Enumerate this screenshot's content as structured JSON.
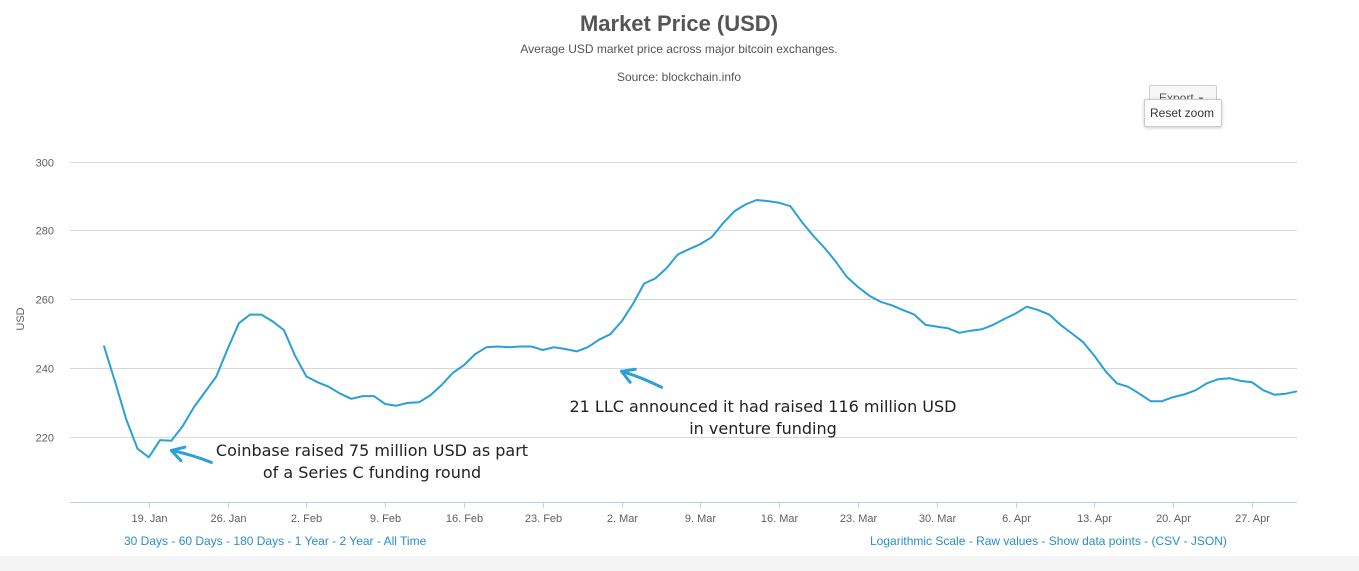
{
  "chart_data": {
    "type": "line",
    "title": "Market Price (USD)",
    "subtitle": "Average USD market price across major bitcoin exchanges.",
    "source": "Source: blockchain.info",
    "ylabel": "USD",
    "ylim": [
      201,
      308
    ],
    "yticks": [
      220,
      240,
      260,
      280,
      300
    ],
    "xlim": [
      "2015-01-12",
      "2015-05-01"
    ],
    "xticks": [
      {
        "date": "2015-01-19",
        "label": "19. Jan"
      },
      {
        "date": "2015-01-26",
        "label": "26. Jan"
      },
      {
        "date": "2015-02-02",
        "label": "2. Feb"
      },
      {
        "date": "2015-02-09",
        "label": "9. Feb"
      },
      {
        "date": "2015-02-16",
        "label": "16. Feb"
      },
      {
        "date": "2015-02-23",
        "label": "23. Feb"
      },
      {
        "date": "2015-03-02",
        "label": "2. Mar"
      },
      {
        "date": "2015-03-09",
        "label": "9. Mar"
      },
      {
        "date": "2015-03-16",
        "label": "16. Mar"
      },
      {
        "date": "2015-03-23",
        "label": "23. Mar"
      },
      {
        "date": "2015-03-30",
        "label": "30. Mar"
      },
      {
        "date": "2015-04-06",
        "label": "6. Apr"
      },
      {
        "date": "2015-04-13",
        "label": "13. Apr"
      },
      {
        "date": "2015-04-20",
        "label": "20. Apr"
      },
      {
        "date": "2015-04-27",
        "label": "27. Apr"
      }
    ],
    "grid": true,
    "series": [
      {
        "color": "#2a9fd8",
        "points": [
          [
            "2015-01-15",
            246.5
          ],
          [
            "2015-01-16",
            236
          ],
          [
            "2015-01-17",
            225
          ],
          [
            "2015-01-18",
            216.5
          ],
          [
            "2015-01-19",
            214
          ],
          [
            "2015-01-20",
            219
          ],
          [
            "2015-01-21",
            218.8
          ],
          [
            "2015-01-22",
            223
          ],
          [
            "2015-01-23",
            228.5
          ],
          [
            "2015-01-24",
            233
          ],
          [
            "2015-01-25",
            237.5
          ],
          [
            "2015-01-26",
            245.5
          ],
          [
            "2015-01-27",
            253
          ],
          [
            "2015-01-28",
            255.5
          ],
          [
            "2015-01-29",
            255.5
          ],
          [
            "2015-01-30",
            253.5
          ],
          [
            "2015-01-31",
            251
          ],
          [
            "2015-02-01",
            243.5
          ],
          [
            "2015-02-02",
            237.5
          ],
          [
            "2015-02-03",
            235.8
          ],
          [
            "2015-02-04",
            234.5
          ],
          [
            "2015-02-05",
            232.5
          ],
          [
            "2015-02-06",
            231
          ],
          [
            "2015-02-07",
            231.8
          ],
          [
            "2015-02-08",
            231.8
          ],
          [
            "2015-02-09",
            229.5
          ],
          [
            "2015-02-10",
            229
          ],
          [
            "2015-02-11",
            229.8
          ],
          [
            "2015-02-12",
            230
          ],
          [
            "2015-02-13",
            232
          ],
          [
            "2015-02-14",
            235
          ],
          [
            "2015-02-15",
            238.5
          ],
          [
            "2015-02-16",
            240.8
          ],
          [
            "2015-02-17",
            244
          ],
          [
            "2015-02-18",
            246
          ],
          [
            "2015-02-19",
            246.2
          ],
          [
            "2015-02-20",
            246
          ],
          [
            "2015-02-21",
            246.2
          ],
          [
            "2015-02-22",
            246.2
          ],
          [
            "2015-02-23",
            245.2
          ],
          [
            "2015-02-24",
            246
          ],
          [
            "2015-02-25",
            245.5
          ],
          [
            "2015-02-26",
            244.8
          ],
          [
            "2015-02-27",
            246
          ],
          [
            "2015-02-28",
            248.2
          ],
          [
            "2015-03-01",
            249.8
          ],
          [
            "2015-03-02",
            253.5
          ],
          [
            "2015-03-03",
            258.5
          ],
          [
            "2015-03-04",
            264.5
          ],
          [
            "2015-03-05",
            266
          ],
          [
            "2015-03-06",
            269
          ],
          [
            "2015-03-07",
            273
          ],
          [
            "2015-03-08",
            274.5
          ],
          [
            "2015-03-09",
            276
          ],
          [
            "2015-03-10",
            278
          ],
          [
            "2015-03-11",
            282
          ],
          [
            "2015-03-12",
            285.5
          ],
          [
            "2015-03-13",
            287.5
          ],
          [
            "2015-03-14",
            288.8
          ],
          [
            "2015-03-15",
            288.5
          ],
          [
            "2015-03-16",
            288
          ],
          [
            "2015-03-17",
            287
          ],
          [
            "2015-03-18",
            282.5
          ],
          [
            "2015-03-19",
            278.5
          ],
          [
            "2015-03-20",
            275
          ],
          [
            "2015-03-21",
            271
          ],
          [
            "2015-03-22",
            266.5
          ],
          [
            "2015-03-23",
            263.5
          ],
          [
            "2015-03-24",
            261
          ],
          [
            "2015-03-25",
            259.2
          ],
          [
            "2015-03-26",
            258.2
          ],
          [
            "2015-03-27",
            256.8
          ],
          [
            "2015-03-28",
            255.5
          ],
          [
            "2015-03-29",
            252.5
          ],
          [
            "2015-03-30",
            252
          ],
          [
            "2015-03-31",
            251.5
          ],
          [
            "2015-04-01",
            250.2
          ],
          [
            "2015-04-02",
            250.8
          ],
          [
            "2015-04-03",
            251.2
          ],
          [
            "2015-04-04",
            252.5
          ],
          [
            "2015-04-05",
            254.2
          ],
          [
            "2015-04-06",
            255.8
          ],
          [
            "2015-04-07",
            257.8
          ],
          [
            "2015-04-08",
            256.8
          ],
          [
            "2015-04-09",
            255.5
          ],
          [
            "2015-04-10",
            252.5
          ],
          [
            "2015-04-11",
            250
          ],
          [
            "2015-04-12",
            247.5
          ],
          [
            "2015-04-13",
            243.5
          ],
          [
            "2015-04-14",
            239
          ],
          [
            "2015-04-15",
            235.5
          ],
          [
            "2015-04-16",
            234.5
          ],
          [
            "2015-04-17",
            232.5
          ],
          [
            "2015-04-18",
            230.3
          ],
          [
            "2015-04-19",
            230.3
          ],
          [
            "2015-04-20",
            231.5
          ],
          [
            "2015-04-21",
            232.3
          ],
          [
            "2015-04-22",
            233.5
          ],
          [
            "2015-04-23",
            235.5
          ],
          [
            "2015-04-24",
            236.7
          ],
          [
            "2015-04-25",
            237
          ],
          [
            "2015-04-26",
            236.2
          ],
          [
            "2015-04-27",
            235.8
          ],
          [
            "2015-04-28",
            233.5
          ],
          [
            "2015-04-29",
            232.2
          ],
          [
            "2015-04-30",
            232.5
          ],
          [
            "2015-05-01",
            233.2
          ]
        ]
      }
    ],
    "annotations": [
      {
        "lines": [
          "Coinbase raised 75 million USD as part",
          "of a Series C funding round"
        ],
        "arrow_to": [
          "2015-01-21",
          216
        ]
      },
      {
        "lines": [
          "21 LLC announced it had raised 116 million USD",
          "in venture funding"
        ],
        "arrow_to": [
          "2015-03-02",
          239
        ]
      }
    ]
  },
  "toolbar": {
    "export_label": "Export",
    "reset_zoom_label": "Reset zoom"
  },
  "footer": {
    "left_links": [
      "30 Days",
      "60 Days",
      "180 Days",
      "1 Year",
      "2 Year",
      "All Time"
    ],
    "right_links": [
      "Logarithmic Scale",
      "Raw values",
      "Show data points"
    ],
    "right_formats": [
      "CSV",
      "JSON"
    ]
  }
}
